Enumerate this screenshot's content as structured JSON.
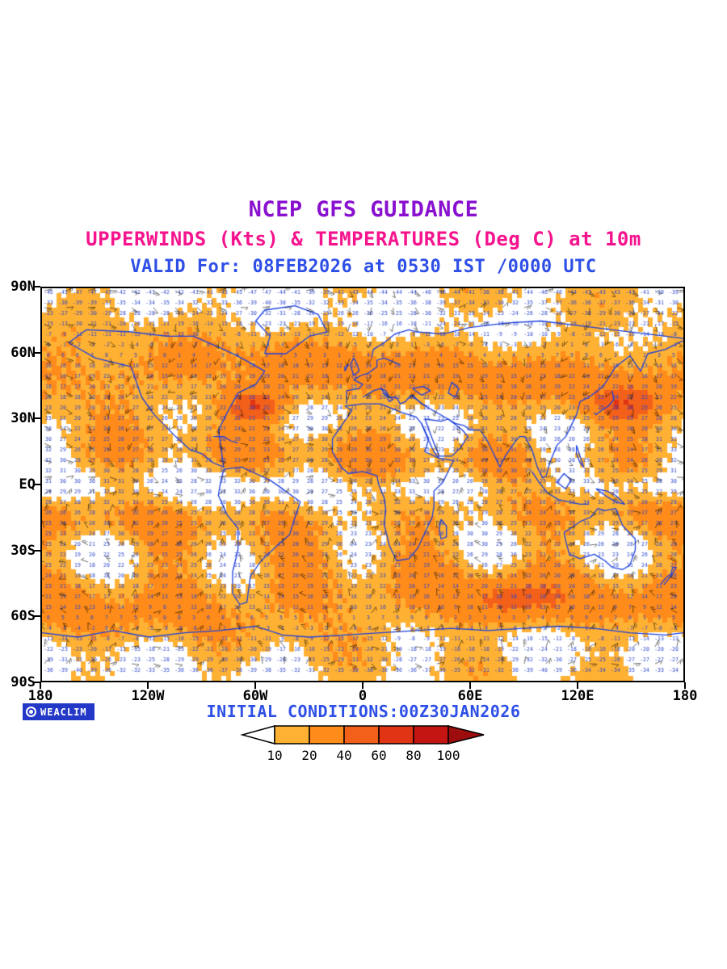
{
  "titles": {
    "line1": "NCEP GFS GUIDANCE",
    "line2": "UPPERWINDS (Kts) & TEMPERATURES (Deg C) at 10m",
    "line3": "VALID For: 08FEB2026 at 0530 IST /0000 UTC"
  },
  "axes": {
    "lat_ticks": [
      "90N",
      "60N",
      "30N",
      "EQ",
      "30S",
      "60S",
      "90S"
    ],
    "lon_ticks": [
      "180",
      "120W",
      "60W",
      "0",
      "60E",
      "120E",
      "180"
    ]
  },
  "footer": {
    "logo_text": "WEACLIM",
    "initial_conditions": "INITIAL CONDITIONS:00Z30JAN2026"
  },
  "colors": {
    "title1": "#8a10cf",
    "title2": "#f5148e",
    "title3": "#2e4fe6",
    "coastline": "#1a3fe0",
    "temperature_text": "#2a44cc",
    "wind_barb": "#000000",
    "logo_bg": "#2438c8"
  },
  "chart_data": {
    "type": "heatmap",
    "title": "NCEP GFS GUIDANCE",
    "subtitle": "UPPERWINDS (Kts) & TEMPERATURES (Deg C) at 10m",
    "valid_line": "VALID For: 08FEB2026 at 0530 IST /0000 UTC",
    "initial_conditions": "INITIAL CONDITIONS:00Z30JAN2026",
    "projection": "equirectangular world map",
    "lon_range": [
      -180,
      180
    ],
    "lat_range": [
      -90,
      90
    ],
    "x_tick_labels": [
      "180",
      "120W",
      "60W",
      "0",
      "60E",
      "120E",
      "180"
    ],
    "y_tick_labels": [
      "90N",
      "60N",
      "30N",
      "EQ",
      "30S",
      "60S",
      "90S"
    ],
    "layers": [
      {
        "name": "wind-speed-shading",
        "units": "Kts",
        "levels": [
          10,
          20,
          40,
          60,
          80,
          100
        ]
      },
      {
        "name": "wind-barbs",
        "units": "Kts",
        "color": "#000000"
      },
      {
        "name": "temperature-values",
        "units": "Deg C",
        "color": "#2a44cc",
        "typical_range": [
          -36,
          30
        ]
      },
      {
        "name": "coastlines",
        "color": "#1a3fe0"
      }
    ],
    "legend": {
      "label_values": [
        10,
        20,
        40,
        60,
        80,
        100
      ],
      "colors": [
        "#ffb133",
        "#ff8c1a",
        "#f2601a",
        "#e03414",
        "#c51512"
      ],
      "arrow_left_color": "#ffffff",
      "arrow_right_color": "#9d0d0d"
    }
  }
}
